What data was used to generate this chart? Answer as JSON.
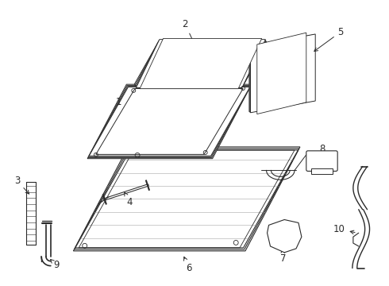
{
  "background_color": "#ffffff",
  "line_color": "#2a2a2a",
  "label_fontsize": 8.5,
  "parts_labels": [
    "1",
    "2",
    "3",
    "4",
    "5",
    "6",
    "7",
    "8",
    "9",
    "10"
  ]
}
